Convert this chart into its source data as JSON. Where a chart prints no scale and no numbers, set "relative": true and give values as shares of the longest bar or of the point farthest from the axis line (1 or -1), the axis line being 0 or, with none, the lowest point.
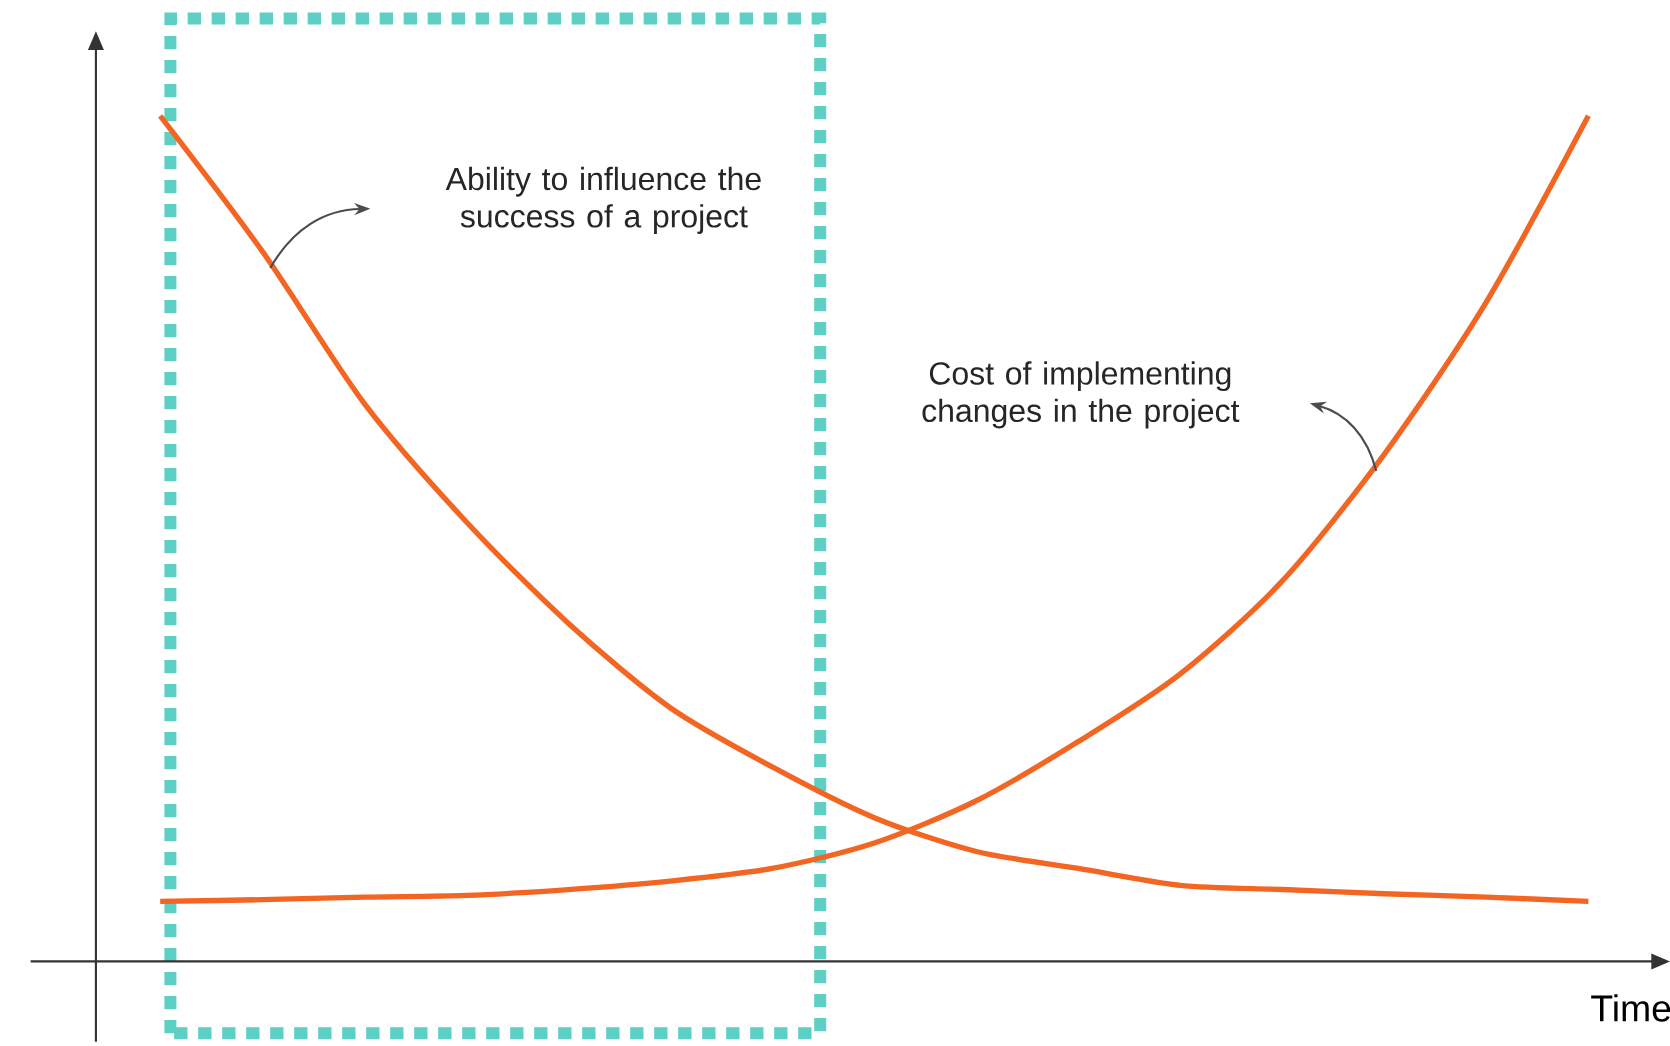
{
  "chart_data": {
    "type": "line",
    "relative": true,
    "xlabel": "Time",
    "categories": [
      null,
      null,
      null,
      null,
      null,
      null,
      null,
      null,
      null,
      null,
      null,
      null,
      null,
      null,
      null
    ],
    "series": [
      {
        "color": "#f26522",
        "values": [
          1.0,
          0.84,
          0.66,
          0.52,
          0.4,
          0.3,
          0.23,
          0.17,
          0.13,
          0.11,
          0.09,
          0.085,
          0.08,
          0.076,
          0.071
        ]
      },
      {
        "color": "#f26522",
        "values": [
          0.071,
          0.073,
          0.076,
          0.078,
          0.085,
          0.095,
          0.11,
          0.14,
          0.19,
          0.26,
          0.34,
          0.45,
          0.6,
          0.78,
          1.0
        ]
      }
    ],
    "annotations": [
      "Ability to influence the success of a project",
      "Cost of implementing changes in the project"
    ],
    "marker": "none",
    "line_style": "solid"
  }
}
